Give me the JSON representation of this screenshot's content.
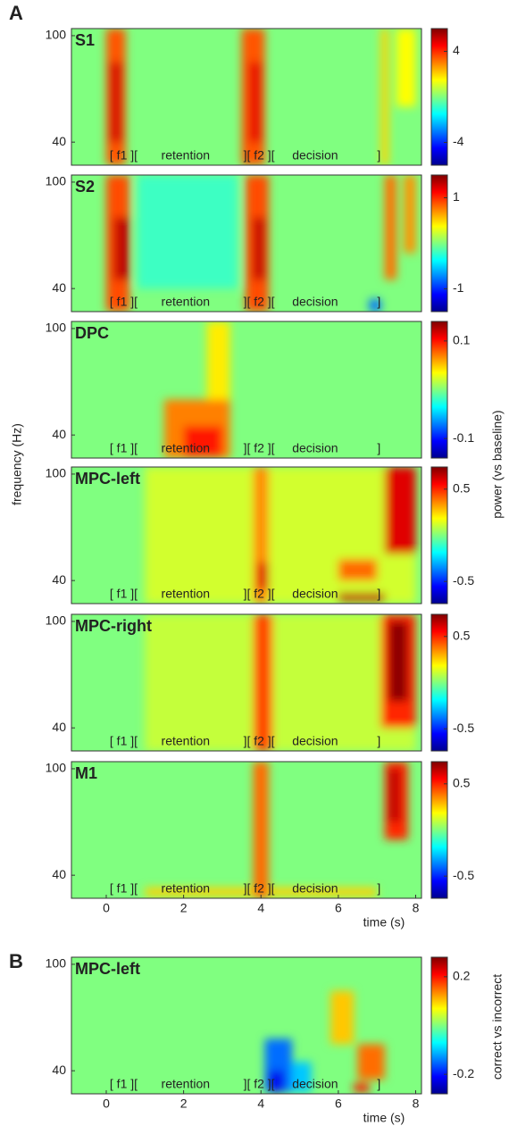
{
  "figure": {
    "panel_a": "A",
    "panel_b": "B",
    "ylabel": "frequency (Hz)",
    "clabel_a": "power (vs baseline)",
    "clabel_b": "correct vs incorrect",
    "epoch_labels": [
      "[ f1 ][",
      "retention",
      "][ f2 ][",
      "decision",
      "]"
    ]
  },
  "chart_data": [
    {
      "type": "heatmap",
      "title": "S1",
      "xlim": [
        -0.9,
        8.15
      ],
      "ylim": [
        27,
        104
      ],
      "yticks": [
        40,
        100
      ],
      "clim": [
        -6,
        6
      ],
      "cticks": [
        4,
        -4
      ],
      "background": 0,
      "hotspots": [
        {
          "t": [
            0,
            0.5
          ],
          "f": [
            27,
            104
          ],
          "value": 3.5
        },
        {
          "t": [
            0.1,
            0.4
          ],
          "f": [
            40,
            85
          ],
          "value": 5
        },
        {
          "t": [
            3.5,
            4.1
          ],
          "f": [
            27,
            104
          ],
          "value": 3.5
        },
        {
          "t": [
            3.7,
            4.0
          ],
          "f": [
            40,
            85
          ],
          "value": 4.8
        },
        {
          "t": [
            7.1,
            7.3
          ],
          "f": [
            27,
            104
          ],
          "value": 2
        },
        {
          "t": [
            7.5,
            8.0
          ],
          "f": [
            60,
            104
          ],
          "value": 1.5
        }
      ]
    },
    {
      "type": "heatmap",
      "title": "S2",
      "xlim": [
        -0.9,
        8.15
      ],
      "ylim": [
        27,
        104
      ],
      "yticks": [
        40,
        100
      ],
      "clim": [
        -1.5,
        1.5
      ],
      "cticks": [
        1,
        -1
      ],
      "background": 0,
      "hotspots": [
        {
          "t": [
            0.8,
            3.4
          ],
          "f": [
            40,
            104
          ],
          "value": -0.2
        },
        {
          "t": [
            0,
            0.6
          ],
          "f": [
            27,
            104
          ],
          "value": 0.9
        },
        {
          "t": [
            0.2,
            0.6
          ],
          "f": [
            45,
            80
          ],
          "value": 1.3
        },
        {
          "t": [
            3.6,
            4.2
          ],
          "f": [
            27,
            104
          ],
          "value": 0.9
        },
        {
          "t": [
            3.8,
            4.1
          ],
          "f": [
            45,
            80
          ],
          "value": 1.3
        },
        {
          "t": [
            7.2,
            7.5
          ],
          "f": [
            45,
            104
          ],
          "value": 0.8
        },
        {
          "t": [
            7.7,
            8.0
          ],
          "f": [
            60,
            104
          ],
          "value": 0.7
        },
        {
          "t": [
            6.8,
            7.1
          ],
          "f": [
            27,
            34
          ],
          "value": -0.8
        }
      ]
    },
    {
      "type": "heatmap",
      "title": "DPC",
      "xlim": [
        -0.9,
        8.15
      ],
      "ylim": [
        27,
        104
      ],
      "yticks": [
        40,
        100
      ],
      "clim": [
        -0.14,
        0.14
      ],
      "cticks": [
        0.1,
        -0.1
      ],
      "background": 0,
      "hotspots": [
        {
          "t": [
            2.6,
            3.2
          ],
          "f": [
            27,
            104
          ],
          "value": 0.04
        },
        {
          "t": [
            1.5,
            3.2
          ],
          "f": [
            27,
            60
          ],
          "value": 0.07
        },
        {
          "t": [
            2.0,
            3.0
          ],
          "f": [
            28,
            45
          ],
          "value": 0.1
        }
      ]
    },
    {
      "type": "heatmap",
      "title": "MPC-left",
      "xlim": [
        -0.9,
        8.15
      ],
      "ylim": [
        27,
        104
      ],
      "yticks": [
        40,
        100
      ],
      "clim": [
        -0.74,
        0.74
      ],
      "cticks": [
        0.5,
        -0.5
      ],
      "background": 0,
      "hotspots": [
        {
          "t": [
            1.0,
            8.0
          ],
          "f": [
            27,
            104
          ],
          "value": 0.12
        },
        {
          "t": [
            3.8,
            4.2
          ],
          "f": [
            27,
            104
          ],
          "value": 0.35
        },
        {
          "t": [
            3.9,
            4.2
          ],
          "f": [
            35,
            50
          ],
          "value": 0.6
        },
        {
          "t": [
            6.0,
            7.0
          ],
          "f": [
            40,
            52
          ],
          "value": 0.4
        },
        {
          "t": [
            6.0,
            7.2
          ],
          "f": [
            28,
            33
          ],
          "value": 0.65
        },
        {
          "t": [
            7.2,
            8.0
          ],
          "f": [
            55,
            104
          ],
          "value": 0.6
        }
      ]
    },
    {
      "type": "heatmap",
      "title": "MPC-right",
      "xlim": [
        -0.9,
        8.15
      ],
      "ylim": [
        27,
        104
      ],
      "yticks": [
        40,
        100
      ],
      "clim": [
        -0.74,
        0.74
      ],
      "cticks": [
        0.5,
        -0.5
      ],
      "background": 0,
      "hotspots": [
        {
          "t": [
            1.0,
            8.0
          ],
          "f": [
            27,
            104
          ],
          "value": 0.1
        },
        {
          "t": [
            3.8,
            4.3
          ],
          "f": [
            27,
            104
          ],
          "value": 0.45
        },
        {
          "t": [
            7.1,
            8.0
          ],
          "f": [
            40,
            104
          ],
          "value": 0.5
        },
        {
          "t": [
            7.3,
            7.8
          ],
          "f": [
            55,
            100
          ],
          "value": 0.72
        }
      ]
    },
    {
      "type": "heatmap",
      "title": "M1",
      "xlim": [
        -0.9,
        8.15
      ],
      "ylim": [
        27,
        104
      ],
      "yticks": [
        40,
        100
      ],
      "clim": [
        -0.74,
        0.74
      ],
      "cticks": [
        0.5,
        -0.5
      ],
      "background": 0,
      "xticks": [
        0,
        2,
        4,
        6,
        8
      ],
      "xlabel": "time (s)",
      "hotspots": [
        {
          "t": [
            1.0,
            7.0
          ],
          "f": [
            28,
            33
          ],
          "value": 0.25
        },
        {
          "t": [
            3.8,
            4.2
          ],
          "f": [
            27,
            104
          ],
          "value": 0.4
        },
        {
          "t": [
            7.2,
            7.8
          ],
          "f": [
            60,
            104
          ],
          "value": 0.5
        },
        {
          "t": [
            7.3,
            7.6
          ],
          "f": [
            70,
            100
          ],
          "value": 0.65
        }
      ]
    },
    {
      "type": "heatmap",
      "title": "MPC-left",
      "xlim": [
        -0.9,
        8.15
      ],
      "ylim": [
        27,
        104
      ],
      "yticks": [
        40,
        100
      ],
      "clim": [
        -0.28,
        0.28
      ],
      "cticks": [
        0.2,
        -0.2
      ],
      "background": 0,
      "xticks": [
        0,
        2,
        4,
        6,
        8
      ],
      "xlabel": "time (s)",
      "hotspots": [
        {
          "t": [
            4.1,
            4.8
          ],
          "f": [
            28,
            58
          ],
          "value": -0.15
        },
        {
          "t": [
            4.2,
            4.6
          ],
          "f": [
            28,
            40
          ],
          "value": -0.22
        },
        {
          "t": [
            4.8,
            5.3
          ],
          "f": [
            28,
            45
          ],
          "value": -0.1
        },
        {
          "t": [
            5.8,
            6.4
          ],
          "f": [
            55,
            85
          ],
          "value": 0.1
        },
        {
          "t": [
            6.5,
            7.2
          ],
          "f": [
            35,
            55
          ],
          "value": 0.15
        },
        {
          "t": [
            6.4,
            6.8
          ],
          "f": [
            28,
            33
          ],
          "value": 0.2
        }
      ]
    }
  ]
}
